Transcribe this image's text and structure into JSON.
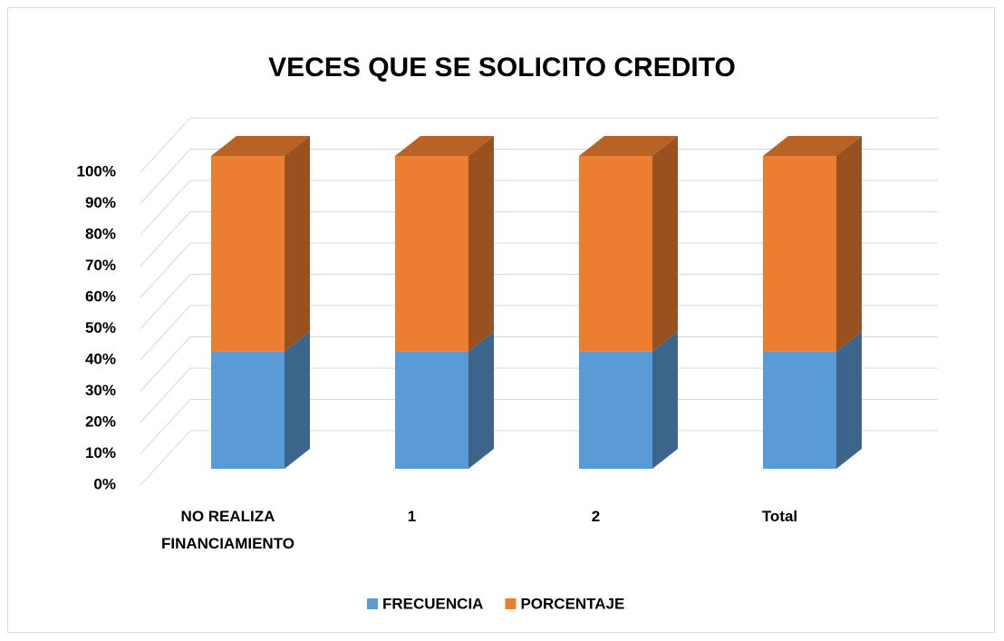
{
  "chart_data": {
    "type": "stacked_bar_3d",
    "title": "VECES QUE SE SOLICITO CREDITO",
    "categories": [
      "NO REALIZA FINANCIAMIENTO",
      "1",
      "2",
      "Total"
    ],
    "series": [
      {
        "name": "FRECUENCIA",
        "color": "#5b9bd5",
        "values": [
          37.5,
          37.5,
          37.5,
          37.5
        ]
      },
      {
        "name": "PORCENTAJE",
        "color": "#ed7d31",
        "values": [
          62.5,
          62.5,
          62.5,
          62.5
        ]
      }
    ],
    "ylim": [
      0,
      100
    ],
    "yticks": [
      {
        "value": 0,
        "label": "0%"
      },
      {
        "value": 10,
        "label": "10%"
      },
      {
        "value": 20,
        "label": "20%"
      },
      {
        "value": 30,
        "label": "30%"
      },
      {
        "value": 40,
        "label": "40%"
      },
      {
        "value": 50,
        "label": "50%"
      },
      {
        "value": 60,
        "label": "60%"
      },
      {
        "value": 70,
        "label": "70%"
      },
      {
        "value": 80,
        "label": "80%"
      },
      {
        "value": 90,
        "label": "90%"
      },
      {
        "value": 100,
        "label": "100%"
      }
    ],
    "grid": true,
    "legend": "bottom"
  }
}
